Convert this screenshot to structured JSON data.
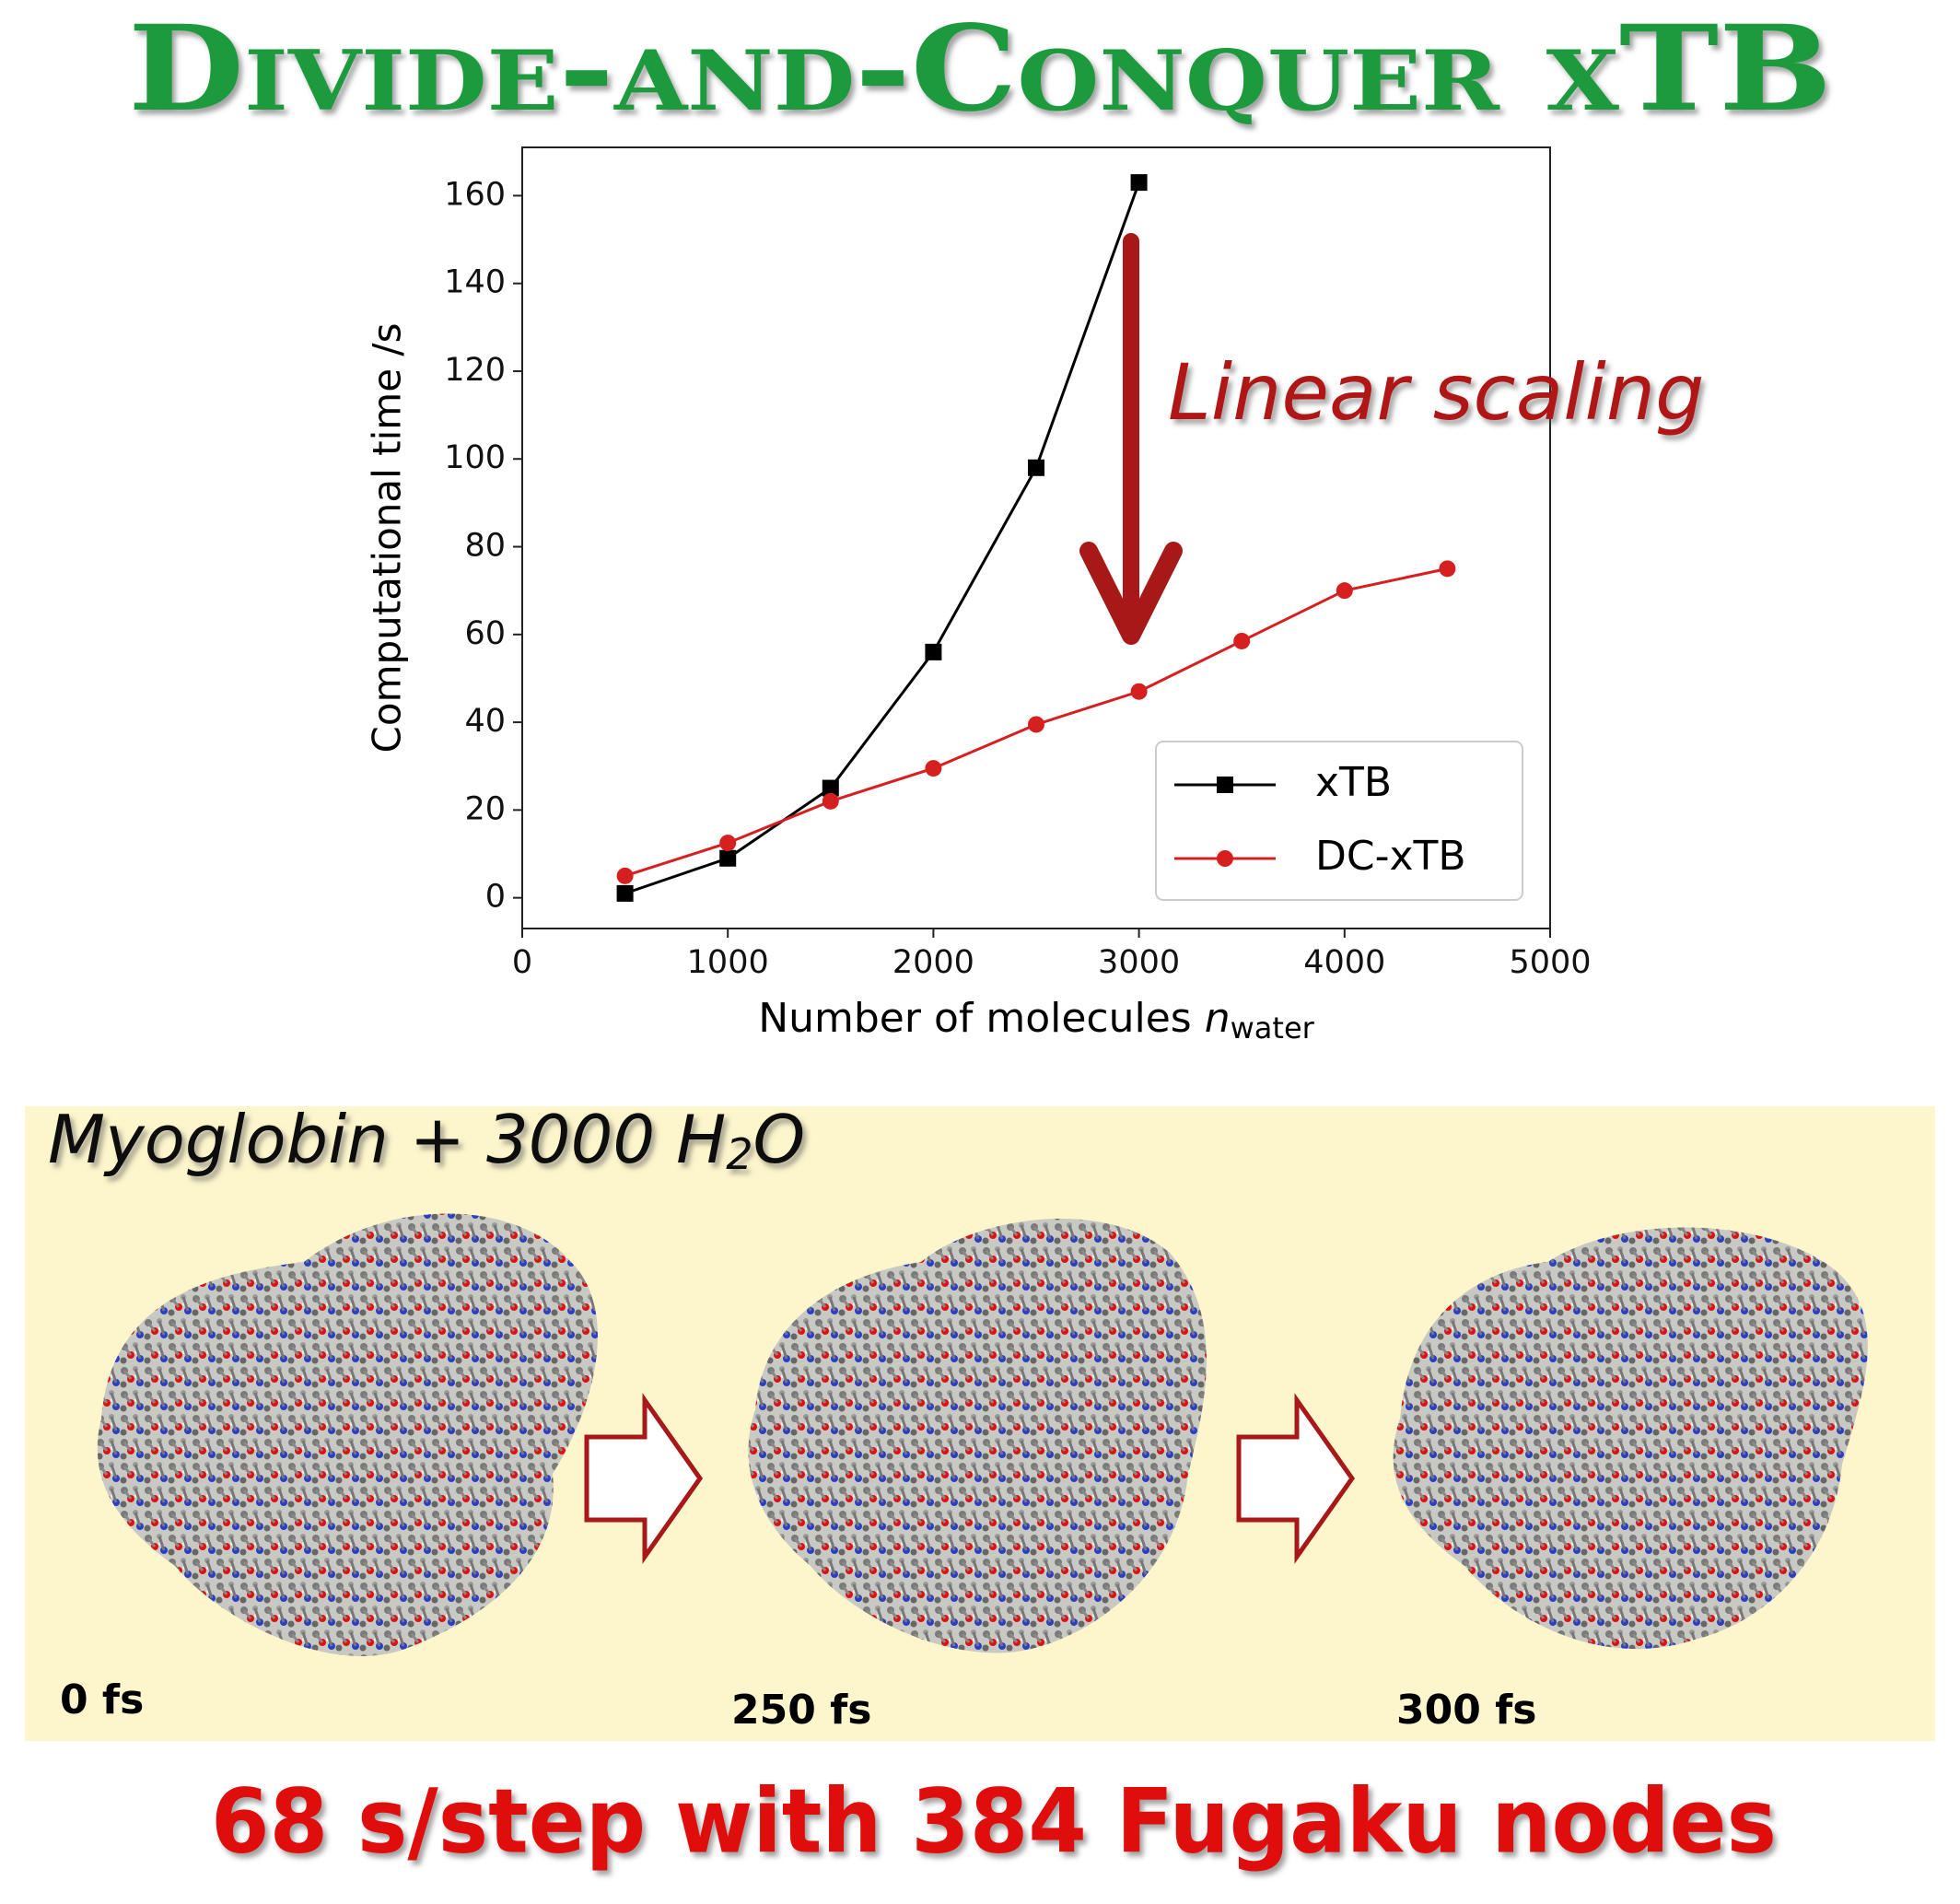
{
  "title": "Divide-and-Conquer xTB",
  "chart_data": {
    "type": "line",
    "ylabel": "Computational time /s",
    "xlabel": {
      "main": "Number of molecules",
      "symbol": "n",
      "subscript": "water"
    },
    "annotation": "Linear scaling",
    "xlim": [
      0,
      5000
    ],
    "xticks": [
      0,
      1000,
      2000,
      3000,
      4000,
      5000
    ],
    "ylim": [
      -7,
      171
    ],
    "yticks": [
      0,
      20,
      40,
      60,
      80,
      100,
      120,
      140,
      160
    ],
    "legend": "lower right",
    "series": [
      {
        "name": "xTB",
        "color": "#000000",
        "marker": "square",
        "x": [
          500,
          1000,
          1500,
          2000,
          2500,
          3000
        ],
        "values": [
          1,
          9,
          25,
          56,
          98,
          163
        ]
      },
      {
        "name": "DC-xTB",
        "color": "#d62020",
        "marker": "circle",
        "x": [
          500,
          1000,
          1500,
          2000,
          2500,
          3000,
          3500,
          4000,
          4500
        ],
        "values": [
          5,
          12.5,
          22,
          29.5,
          39.5,
          47,
          58.5,
          70,
          75
        ]
      }
    ]
  },
  "panel": {
    "label": {
      "main": "Myoglobin + 3000 H",
      "subscript": "2",
      "tail": "O"
    },
    "frames": [
      "0 fs",
      "250 fs",
      "300 fs"
    ]
  },
  "footer": "68 s/step with 384 Fugaku nodes"
}
